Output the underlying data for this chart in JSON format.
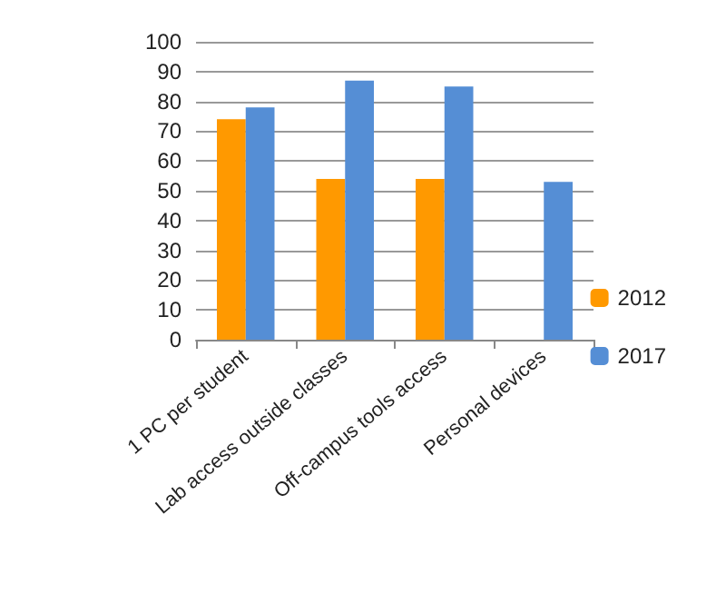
{
  "chart_data": {
    "type": "bar",
    "categories": [
      "1 PC per student",
      "Lab access outside classes",
      "Off-campus tools access",
      "Personal devices"
    ],
    "series": [
      {
        "name": "2012",
        "color": "#ff9900",
        "values": [
          74,
          54,
          54,
          null
        ]
      },
      {
        "name": "2017",
        "color": "#558ed5",
        "values": [
          78,
          87,
          85,
          53
        ]
      }
    ],
    "ylim": [
      0,
      100
    ],
    "yticks": [
      0,
      10,
      20,
      30,
      40,
      50,
      60,
      70,
      80,
      90,
      100
    ],
    "grid": "y",
    "legend": "right"
  }
}
